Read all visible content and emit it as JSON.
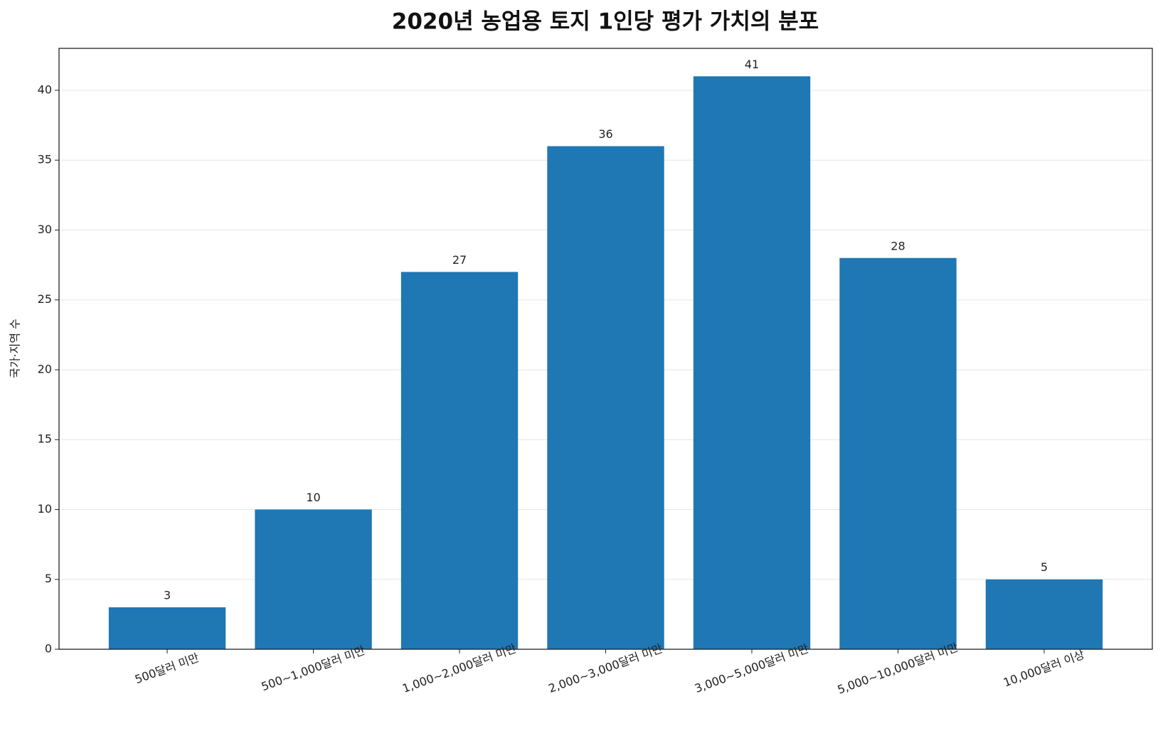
{
  "chart_data": {
    "type": "bar",
    "title": "2020년 농업용 토지 1인당 평가 가치의 분포",
    "y_label": "국가·지역 수",
    "categories": [
      "500달러 미만",
      "500~1,000달러 미만",
      "1,000~2,000달러 미만",
      "2,000~3,000달러 미만",
      "3,000~5,000달러 미만",
      "5,000~10,000달러 미만",
      "10,000달러 이상"
    ],
    "values": [
      3,
      10,
      27,
      36,
      41,
      28,
      5
    ],
    "color": "#1f77b4",
    "ylim": [
      0,
      43
    ],
    "yticks": [
      0,
      5,
      10,
      15,
      20,
      25,
      30,
      35,
      40
    ],
    "grid": true
  }
}
